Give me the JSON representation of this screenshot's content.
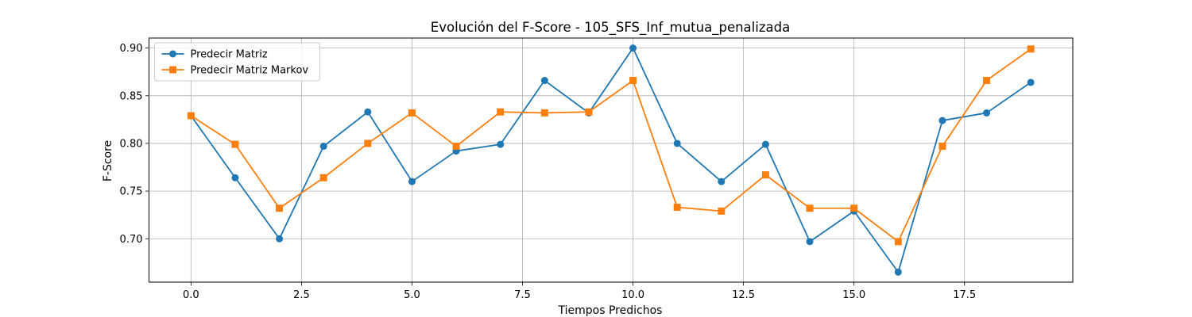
{
  "chart_data": {
    "type": "line",
    "title": "Evolución del F-Score - 105_SFS_Inf_mutua_penalizada",
    "xlabel": "Tiempos Predichos",
    "ylabel": "F-Score",
    "xlim": [
      -0.95,
      19.95
    ],
    "ylim": [
      0.6545,
      0.9105
    ],
    "xticks": [
      0.0,
      2.5,
      5.0,
      7.5,
      10.0,
      12.5,
      15.0,
      17.5
    ],
    "xtick_labels": [
      "0.0",
      "2.5",
      "5.0",
      "7.5",
      "10.0",
      "12.5",
      "15.0",
      "17.5"
    ],
    "yticks": [
      0.7,
      0.75,
      0.8,
      0.85,
      0.9
    ],
    "ytick_labels": [
      "0.70",
      "0.75",
      "0.80",
      "0.85",
      "0.90"
    ],
    "grid": true,
    "legend_position": "top-left",
    "x": [
      0,
      1,
      2,
      3,
      4,
      5,
      6,
      7,
      8,
      9,
      10,
      11,
      12,
      13,
      14,
      15,
      16,
      17,
      18,
      19
    ],
    "series": [
      {
        "name": "Predecir Matriz",
        "color": "#1f77b4",
        "marker": "circle",
        "values": [
          0.829,
          0.764,
          0.7,
          0.797,
          0.833,
          0.76,
          0.792,
          0.799,
          0.866,
          0.832,
          0.9,
          0.8,
          0.76,
          0.799,
          0.697,
          0.729,
          0.665,
          0.824,
          0.832,
          0.864
        ]
      },
      {
        "name": "Predecir Matriz Markov",
        "color": "#ff7f0e",
        "marker": "square",
        "values": [
          0.829,
          0.799,
          0.732,
          0.764,
          0.8,
          0.832,
          0.797,
          0.833,
          0.832,
          0.833,
          0.866,
          0.733,
          0.729,
          0.767,
          0.732,
          0.732,
          0.697,
          0.797,
          0.866,
          0.899
        ]
      }
    ]
  }
}
